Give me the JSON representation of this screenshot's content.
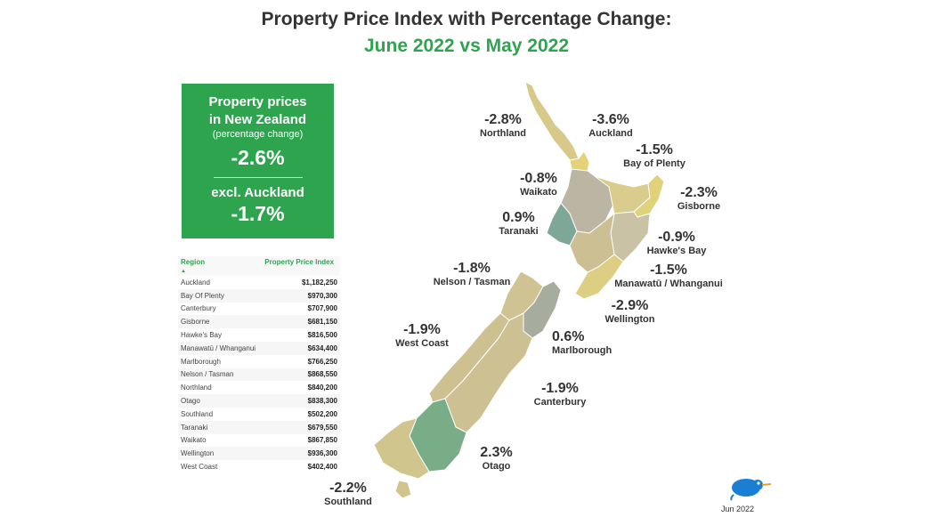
{
  "title": "Property Price Index with Percentage Change:",
  "subtitle": "June 2022 vs May 2022",
  "summary": {
    "heading_line1": "Property prices",
    "heading_line2": "in New Zealand",
    "note": "(percentage change)",
    "nz_change": "-2.6%",
    "excl_label": "excl. Auckland",
    "excl_change": "-1.7%"
  },
  "table": {
    "col_region": "Region",
    "col_index": "Property Price Index",
    "sort_icon": "sort-ascending-icon",
    "rows": [
      {
        "region": "Auckland",
        "value": "$1,182,250"
      },
      {
        "region": "Bay Of Plenty",
        "value": "$970,300"
      },
      {
        "region": "Canterbury",
        "value": "$707,900"
      },
      {
        "region": "Gisborne",
        "value": "$681,150"
      },
      {
        "region": "Hawke's Bay",
        "value": "$816,500"
      },
      {
        "region": "Manawatū / Whanganui",
        "value": "$634,400"
      },
      {
        "region": "Marlborough",
        "value": "$766,250"
      },
      {
        "region": "Nelson / Tasman",
        "value": "$868,550"
      },
      {
        "region": "Northland",
        "value": "$840,200"
      },
      {
        "region": "Otago",
        "value": "$838,300"
      },
      {
        "region": "Southland",
        "value": "$502,200"
      },
      {
        "region": "Taranaki",
        "value": "$679,550"
      },
      {
        "region": "Waikato",
        "value": "$867,850"
      },
      {
        "region": "Wellington",
        "value": "$936,300"
      },
      {
        "region": "West Coast",
        "value": "$402,400"
      }
    ]
  },
  "map_labels": [
    {
      "name": "Northland",
      "change": "-2.8%"
    },
    {
      "name": "Auckland",
      "change": "-3.6%"
    },
    {
      "name": "Bay of Plenty",
      "change": "-1.5%"
    },
    {
      "name": "Waikato",
      "change": "-0.8%"
    },
    {
      "name": "Gisborne",
      "change": "-2.3%"
    },
    {
      "name": "Taranaki",
      "change": "0.9%"
    },
    {
      "name": "Hawke's Bay",
      "change": "-0.9%"
    },
    {
      "name": "Nelson / Tasman",
      "change": "-1.8%"
    },
    {
      "name": "Manawatū / Whanganui",
      "change": "-1.5%"
    },
    {
      "name": "Wellington",
      "change": "-2.9%"
    },
    {
      "name": "West Coast",
      "change": "-1.9%"
    },
    {
      "name": "Marlborough",
      "change": "0.6%"
    },
    {
      "name": "Canterbury",
      "change": "-1.9%"
    },
    {
      "name": "Otago",
      "change": "2.3%"
    },
    {
      "name": "Southland",
      "change": "-2.2%"
    }
  ],
  "colors": {
    "accent": "#2ea44f",
    "positive": "#79ad88",
    "negative": "#d6c98a"
  },
  "logo": "kiwi-bird-logo",
  "date": "Jun 2022"
}
